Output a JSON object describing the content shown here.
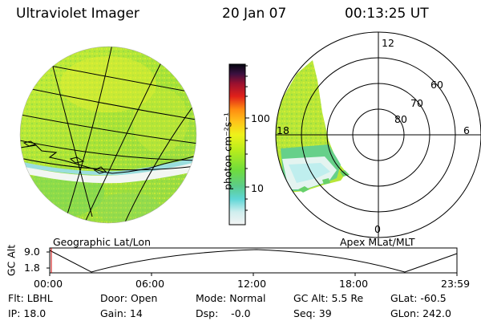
{
  "header": {
    "instrument": "Ultraviolet Imager",
    "date": "20 Jan 07",
    "time": "00:13:25 UT"
  },
  "colorbar": {
    "unit_label": "photon cm⁻²s⁻¹",
    "tick_100": "100",
    "tick_10": "10"
  },
  "left_panel": {
    "caption": "Geographic Lat/Lon"
  },
  "right_panel": {
    "caption": "Apex MLat/MLT",
    "label_12": "12",
    "label_60": "60",
    "label_70": "70",
    "label_80": "80",
    "label_18": "18",
    "label_6": "6",
    "label_0": "0"
  },
  "altitude_plot": {
    "ylabel": "GC Alt",
    "ytick_high": "9.0",
    "ytick_low": "1.8",
    "xticks": [
      "00:00",
      "06:00",
      "12:00",
      "18:00",
      "23:59"
    ]
  },
  "status": {
    "flt": "Flt: LBHL",
    "ip": "IP: 18.0",
    "door": "Door: Open",
    "gain": "Gain: 14",
    "mode": "Mode: Normal",
    "dsp": "Dsp:    -0.0",
    "gc_alt": "GC Alt: 5.5 Re",
    "seq": "Seq: 39",
    "glat": "GLat: -60.5",
    "glon": "GLon: 242.0"
  }
}
